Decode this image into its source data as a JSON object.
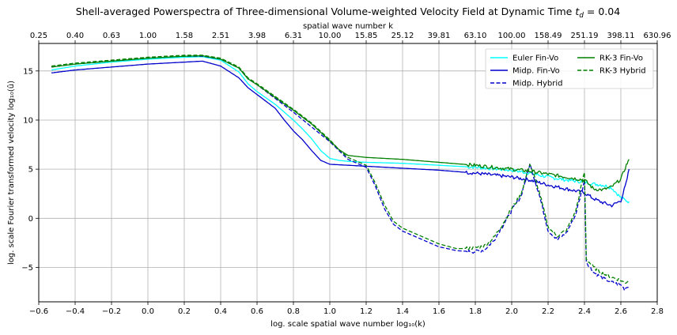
{
  "chart_data": {
    "type": "line",
    "title": "Shell-averaged Powerspectra of Three-dimensional Volume-weighted Velocity Field at Dynamic Time $t_d$ = 0.04",
    "title_text": "Shell-averaged Powerspectra of Three-dimensional Volume-weighted Velocity Field at Dynamic Time ",
    "title_math_base": "t",
    "title_math_sub": "d",
    "title_suffix": " = 0.04",
    "xlabel": "log. scale spatial wave number log₁₀(k)",
    "xlabel_top": "spatial wave number k",
    "ylabel": "log. scale Fourier transformed velocity log₁₀(û)",
    "xlim": [
      -0.6,
      2.8
    ],
    "ylim": [
      -8.5,
      17.8
    ],
    "grid": true,
    "legend_position": "top-right",
    "x_ticks": [
      "−0.6",
      "−0.4",
      "−0.2",
      "0.0",
      "0.2",
      "0.4",
      "0.6",
      "0.8",
      "1.0",
      "1.2",
      "1.4",
      "1.6",
      "1.8",
      "2.0",
      "2.2",
      "2.4",
      "2.6",
      "2.8"
    ],
    "x_tick_values": [
      -0.6,
      -0.4,
      -0.2,
      0.0,
      0.2,
      0.4,
      0.6,
      0.8,
      1.0,
      1.2,
      1.4,
      1.6,
      1.8,
      2.0,
      2.2,
      2.4,
      2.6,
      2.8
    ],
    "y_ticks": [
      "−5",
      "0",
      "5",
      "10",
      "15"
    ],
    "y_tick_values": [
      -5,
      0,
      5,
      10,
      15
    ],
    "top_ticks": [
      "0.25",
      "0.40",
      "0.63",
      "1.00",
      "1.58",
      "2.51",
      "3.98",
      "6.31",
      "10.00",
      "15.85",
      "25.12",
      "39.81",
      "63.10",
      "100.00",
      "158.49",
      "251.19",
      "398.11",
      "630.96"
    ],
    "top_tick_values": [
      -0.6,
      -0.4,
      -0.2,
      0.0,
      0.2,
      0.4,
      0.6,
      0.8,
      1.0,
      1.2,
      1.4,
      1.6,
      1.8,
      2.0,
      2.2,
      2.4,
      2.6,
      2.8
    ],
    "series": [
      {
        "name": "Euler Fin-Vo",
        "color": "#00ffff",
        "dash": "solid",
        "x": [
          -0.53,
          -0.4,
          -0.2,
          0,
          0.1,
          0.2,
          0.3,
          0.4,
          0.5,
          0.55,
          0.6,
          0.7,
          0.8,
          0.85,
          0.9,
          0.95,
          1,
          1.05,
          1.1,
          1.2,
          1.4,
          1.6,
          1.8,
          2,
          2.1,
          2.2,
          2.3,
          2.4,
          2.45,
          2.5,
          2.55,
          2.6,
          2.63,
          2.645
        ],
        "y": [
          15.1,
          15.5,
          15.9,
          16.2,
          16.3,
          16.4,
          16.45,
          16.1,
          14.9,
          13.7,
          12.9,
          11.6,
          10.0,
          9.1,
          8.1,
          6.9,
          6.1,
          5.9,
          5.8,
          5.7,
          5.6,
          5.4,
          5.2,
          4.9,
          4.6,
          4.2,
          3.9,
          3.7,
          3.5,
          3.4,
          3.1,
          2.1,
          1.8,
          1.7
        ]
      },
      {
        "name": "Midp. Fin-Vo",
        "color": "#0000cc",
        "dash": "solid",
        "x": [
          -0.53,
          -0.4,
          -0.2,
          0,
          0.1,
          0.2,
          0.3,
          0.4,
          0.5,
          0.55,
          0.6,
          0.7,
          0.75,
          0.8,
          0.85,
          0.9,
          0.95,
          1,
          1.1,
          1.2,
          1.4,
          1.6,
          1.8,
          2,
          2.1,
          2.2,
          2.3,
          2.4,
          2.45,
          2.5,
          2.55,
          2.6,
          2.63,
          2.645
        ],
        "y": [
          14.8,
          15.1,
          15.4,
          15.7,
          15.8,
          15.9,
          16.0,
          15.5,
          14.3,
          13.3,
          12.6,
          11.2,
          10.0,
          8.9,
          8.0,
          6.9,
          5.9,
          5.5,
          5.4,
          5.3,
          5.1,
          4.9,
          4.6,
          4.2,
          3.9,
          3.4,
          3.0,
          2.6,
          2.0,
          1.6,
          1.3,
          1.8,
          3.6,
          5.0
        ]
      },
      {
        "name": "Midp. Hybrid",
        "color": "#0000cc",
        "dash": "dashed",
        "x": [
          -0.53,
          -0.4,
          -0.2,
          0,
          0.1,
          0.2,
          0.3,
          0.4,
          0.5,
          0.55,
          0.6,
          0.7,
          0.8,
          0.9,
          1,
          1.05,
          1.1,
          1.2,
          1.25,
          1.3,
          1.35,
          1.4,
          1.5,
          1.6,
          1.7,
          1.8,
          1.85,
          1.9,
          1.95,
          2.0,
          2.05,
          2.1,
          2.15,
          2.2,
          2.25,
          2.3,
          2.35,
          2.4,
          2.41,
          2.45,
          2.5,
          2.55,
          2.6,
          2.62,
          2.645
        ],
        "y": [
          15.4,
          15.7,
          16.0,
          16.3,
          16.4,
          16.5,
          16.5,
          16.2,
          15.3,
          14.2,
          13.6,
          12.2,
          10.8,
          9.3,
          7.8,
          6.9,
          6.0,
          5.2,
          3.3,
          1.0,
          -0.6,
          -1.3,
          -2.1,
          -2.9,
          -3.3,
          -3.4,
          -3.2,
          -2.3,
          -0.8,
          0.8,
          2.2,
          5.5,
          2.5,
          -1.2,
          -2.2,
          -1.5,
          0.3,
          3.8,
          -4.4,
          -5.5,
          -6.1,
          -6.5,
          -6.8,
          -7.2,
          -6.8
        ]
      },
      {
        "name": "RK-3  Fin-Vo",
        "color": "#008000",
        "dash": "solid",
        "x": [
          -0.53,
          -0.4,
          -0.2,
          0,
          0.1,
          0.2,
          0.3,
          0.4,
          0.5,
          0.55,
          0.6,
          0.7,
          0.8,
          0.9,
          1,
          1.05,
          1.1,
          1.2,
          1.4,
          1.6,
          1.8,
          2,
          2.1,
          2.2,
          2.3,
          2.4,
          2.45,
          2.5,
          2.55,
          2.6,
          2.63,
          2.645
        ],
        "y": [
          15.4,
          15.7,
          16.0,
          16.3,
          16.4,
          16.5,
          16.55,
          16.2,
          15.3,
          14.2,
          13.6,
          12.3,
          11.0,
          9.6,
          7.9,
          7.0,
          6.4,
          6.2,
          6.0,
          5.7,
          5.4,
          5.0,
          4.8,
          4.5,
          4.2,
          3.9,
          3.0,
          2.9,
          3.2,
          4.0,
          5.4,
          6.0
        ]
      },
      {
        "name": "RK-3  Hybrid",
        "color": "#008000",
        "dash": "dashed",
        "x": [
          -0.53,
          -0.4,
          -0.2,
          0,
          0.1,
          0.2,
          0.3,
          0.4,
          0.5,
          0.55,
          0.6,
          0.7,
          0.8,
          0.9,
          1,
          1.05,
          1.1,
          1.2,
          1.25,
          1.3,
          1.35,
          1.4,
          1.5,
          1.6,
          1.7,
          1.8,
          1.85,
          1.9,
          1.95,
          2.0,
          2.05,
          2.1,
          2.15,
          2.2,
          2.25,
          2.3,
          2.35,
          2.4,
          2.41,
          2.45,
          2.5,
          2.55,
          2.6,
          2.62,
          2.645
        ],
        "y": [
          15.5,
          15.8,
          16.1,
          16.4,
          16.5,
          16.6,
          16.6,
          16.3,
          15.4,
          14.3,
          13.7,
          12.4,
          11.1,
          9.7,
          8.0,
          7.0,
          6.2,
          5.4,
          3.6,
          1.4,
          -0.3,
          -1.0,
          -1.8,
          -2.6,
          -3.1,
          -3.0,
          -2.8,
          -2.0,
          -0.6,
          1.0,
          2.4,
          5.6,
          2.8,
          -0.9,
          -1.8,
          -1.2,
          0.6,
          4.7,
          -4.1,
          -5.0,
          -5.6,
          -6.0,
          -6.3,
          -6.6,
          -6.3
        ]
      }
    ]
  }
}
